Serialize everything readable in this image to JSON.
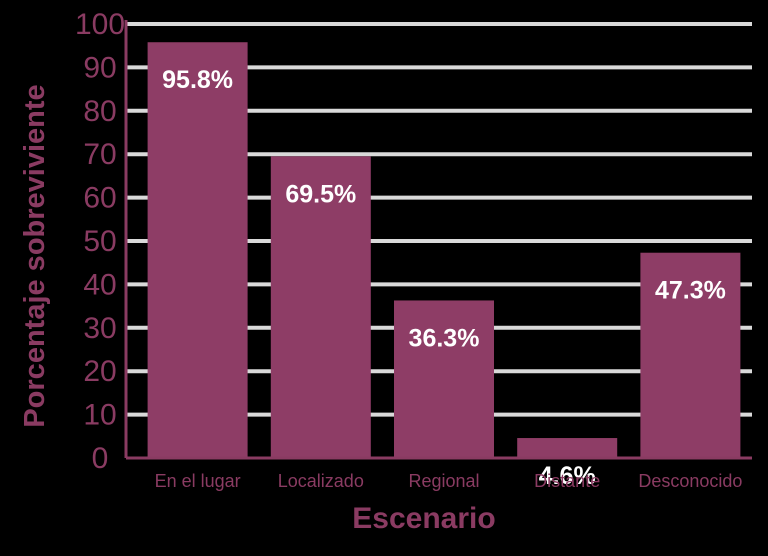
{
  "chart_data": {
    "type": "bar",
    "categories": [
      "En el lugar",
      "Localizado",
      "Regional",
      "Distante",
      "Desconocido"
    ],
    "values": [
      95.8,
      69.5,
      36.3,
      4.6,
      47.3
    ],
    "value_labels": [
      "95.8%",
      "69.5%",
      "36.3%",
      "4.6%",
      "47.3%"
    ],
    "title": "",
    "xlabel": "Escenario",
    "ylabel": "Porcentaje sobreviviente",
    "ylim": [
      0,
      100
    ],
    "yticks": [
      "0",
      "10",
      "20",
      "30",
      "40",
      "50",
      "60",
      "70",
      "80",
      "90",
      "100"
    ],
    "grid": "horizontal",
    "legend": "none",
    "colors": {
      "bar": "#8e3d66",
      "text": "#8a3b62",
      "grid": "#d9d9d9",
      "axis": "#8a3b62",
      "value_label": "#ffffff",
      "background": "#000000"
    }
  }
}
